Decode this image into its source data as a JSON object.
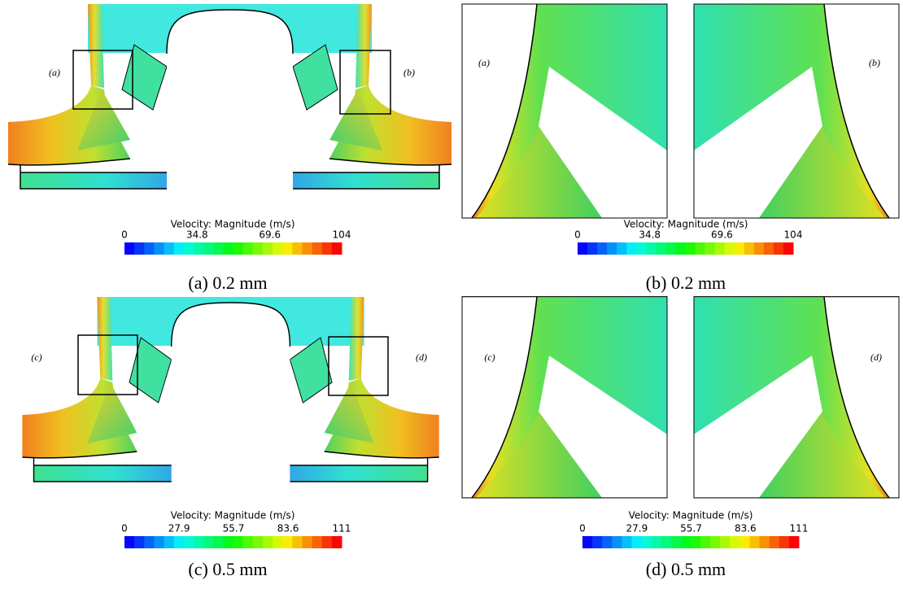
{
  "panels": [
    {
      "caption": "(a) 0.2 mm",
      "labels": [
        "(a)",
        "(b)"
      ],
      "colorbar": {
        "title": "Velocity: Magnitude (m/s)",
        "ticks": [
          0,
          34.8,
          69.6,
          104
        ]
      }
    },
    {
      "caption": "(b) 0.2 mm",
      "labels": [
        "(a)",
        "(b)"
      ],
      "colorbar": {
        "title": "Velocity: Magnitude (m/s)",
        "ticks": [
          0,
          34.8,
          69.6,
          104
        ]
      }
    },
    {
      "caption": "(c) 0.5 mm",
      "labels": [
        "(c)",
        "(d)"
      ],
      "colorbar": {
        "title": "Velocity: Magnitude (m/s)",
        "ticks": [
          0,
          27.9,
          55.7,
          83.6,
          111
        ]
      }
    },
    {
      "caption": "(d) 0.5 mm",
      "labels": [
        "(c)",
        "(d)"
      ],
      "colorbar": {
        "title": "Velocity: Magnitude (m/s)",
        "ticks": [
          0,
          27.9,
          55.7,
          83.6,
          111
        ]
      }
    }
  ]
}
